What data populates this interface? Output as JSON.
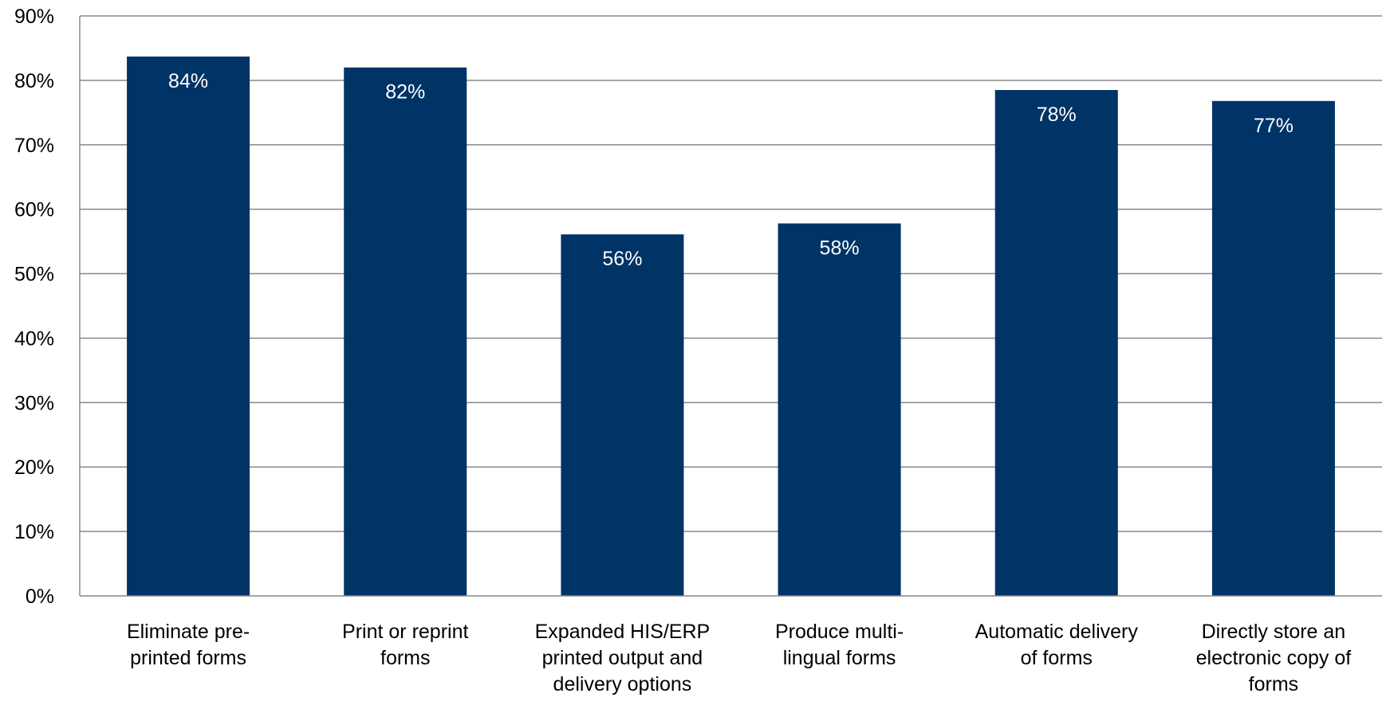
{
  "chart_data": {
    "type": "bar",
    "title": "",
    "xlabel": "",
    "ylabel": "",
    "ylim": [
      0,
      90
    ],
    "yticks": [
      0,
      10,
      20,
      30,
      40,
      50,
      60,
      70,
      80,
      90
    ],
    "ytick_labels": [
      "0%",
      "10%",
      "20%",
      "30%",
      "40%",
      "50%",
      "60%",
      "70%",
      "80%",
      "90%"
    ],
    "grid": true,
    "legend": "none",
    "categories": [
      [
        "Eliminate pre-",
        "printed forms"
      ],
      [
        "Print or reprint",
        "forms"
      ],
      [
        "Expanded HIS/ERP",
        "printed output and",
        "delivery options"
      ],
      [
        "Produce multi-",
        "lingual forms"
      ],
      [
        "Automatic delivery",
        "of forms"
      ],
      [
        "Directly store an",
        "electronic copy of",
        "forms"
      ]
    ],
    "values": [
      83.7,
      82.0,
      56.1,
      57.8,
      78.5,
      76.8
    ],
    "data_labels": [
      "84%",
      "82%",
      "56%",
      "58%",
      "78%",
      "77%"
    ],
    "colors": {
      "bar": "#003366",
      "grid": "#888888",
      "axis": "#888888"
    }
  }
}
